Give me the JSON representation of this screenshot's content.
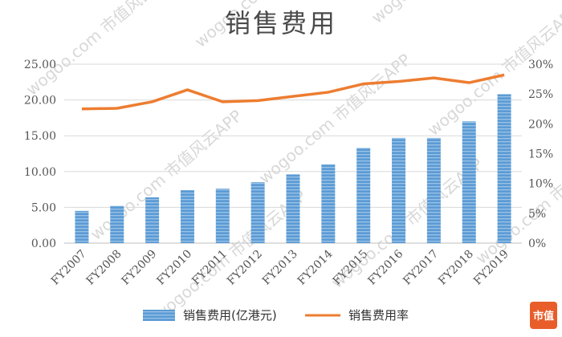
{
  "watermark": "wogoo.com 市值风云APP",
  "logo": {
    "text": "市值"
  },
  "chart_data": {
    "type": "bar",
    "title": "销售费用",
    "categories": [
      "FY2007",
      "FY2008",
      "FY2009",
      "FY2010",
      "FY2011",
      "FY2012",
      "FY2013",
      "FY2014",
      "FY2015",
      "FY2016",
      "FY2017",
      "FY2018",
      "FY2019"
    ],
    "series": [
      {
        "name": "销售费用(亿港元)",
        "type": "bar",
        "axis": "left",
        "color": "#5b9bd5",
        "values": [
          4.5,
          5.2,
          6.4,
          7.4,
          7.6,
          8.5,
          9.6,
          11.0,
          13.3,
          14.7,
          14.7,
          17.0,
          20.8
        ]
      },
      {
        "name": "销售费用率",
        "type": "line",
        "axis": "right",
        "color": "#ed7d31",
        "values": [
          0.225,
          0.226,
          0.237,
          0.257,
          0.237,
          0.239,
          0.246,
          0.253,
          0.267,
          0.271,
          0.277,
          0.269,
          0.282
        ]
      }
    ],
    "y_left": {
      "ylim": [
        0,
        25
      ],
      "ticks": [
        "0.00",
        "5.00",
        "10.00",
        "15.00",
        "20.00",
        "25.00"
      ]
    },
    "y_right": {
      "ylim": [
        0,
        0.3
      ],
      "ticks": [
        "0%",
        "5%",
        "10%",
        "15%",
        "20%",
        "25%",
        "30%"
      ]
    },
    "grid": true,
    "legend_position": "bottom"
  }
}
